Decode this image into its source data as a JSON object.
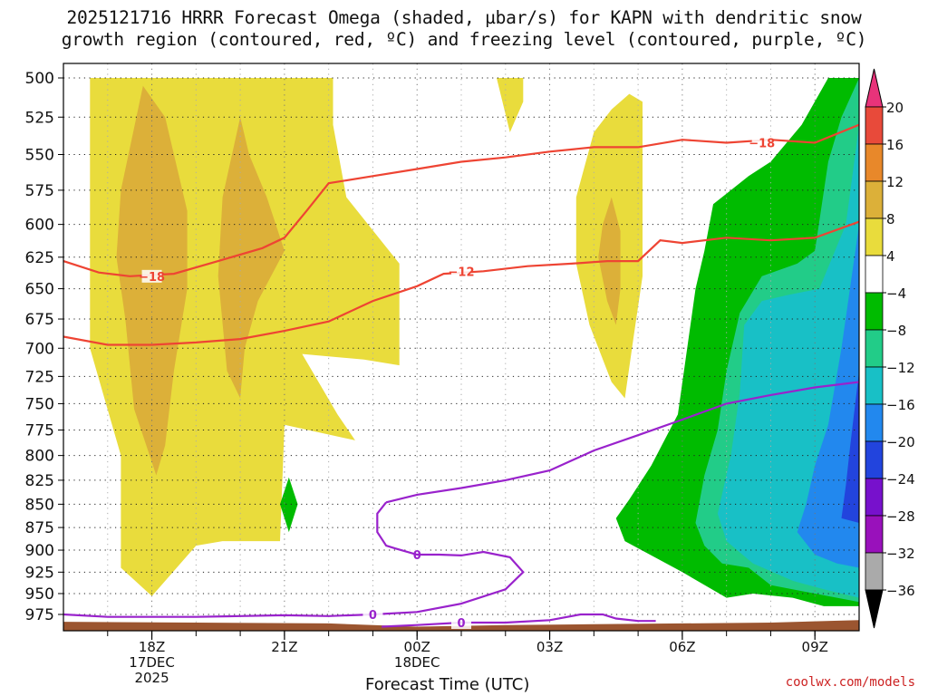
{
  "title": {
    "line1": "2025121716 HRRR Forecast Omega (shaded, µbar/s) for KAPN with dendritic snow",
    "line2": "growth region (contoured, red, ºC) and freezing level (contoured, purple, ºC)"
  },
  "credit": "coolwx.com/models",
  "chart_data": {
    "type": "heatmap",
    "xlabel": "Forecast Time (UTC)",
    "x_ticks": [
      {
        "hour": 2,
        "lines": [
          "18Z",
          "17DEC",
          "2025"
        ]
      },
      {
        "hour": 5,
        "lines": [
          "21Z"
        ]
      },
      {
        "hour": 8,
        "lines": [
          "00Z",
          "18DEC"
        ]
      },
      {
        "hour": 11,
        "lines": [
          "03Z"
        ]
      },
      {
        "hour": 14,
        "lines": [
          "06Z"
        ]
      },
      {
        "hour": 17,
        "lines": [
          "09Z"
        ]
      }
    ],
    "xlim": [
      0.0,
      18.0
    ],
    "y_ticks": [
      500,
      525,
      550,
      575,
      600,
      625,
      650,
      675,
      700,
      725,
      750,
      775,
      800,
      825,
      850,
      875,
      900,
      925,
      950,
      975
    ],
    "ylim": [
      995,
      490
    ],
    "grid": "dotted",
    "colorbar": {
      "labels": [
        "20",
        "16",
        "12",
        "8",
        "4",
        "−4",
        "−8",
        "−12",
        "−16",
        "−20",
        "−24",
        "−28",
        "−32",
        "−36"
      ],
      "colors": [
        "#e8337a",
        "#e84a3a",
        "#e8882a",
        "#dcb039",
        "#e9dc3c",
        "#ffffff",
        "#00bb00",
        "#22cc88",
        "#18c0c6",
        "#2288ee",
        "#2244dd",
        "#7711cc",
        "#9911bb",
        "#aaaaaa",
        "#000000"
      ]
    },
    "omega_regions": [
      {
        "level": "4",
        "color": "#e9dc3c",
        "polygon": [
          [
            0.6,
            500
          ],
          [
            6.1,
            500
          ],
          [
            6.1,
            530
          ],
          [
            6.4,
            580
          ],
          [
            7.6,
            630
          ],
          [
            7.6,
            715
          ],
          [
            6.8,
            710
          ],
          [
            5.4,
            705
          ],
          [
            6.2,
            760
          ],
          [
            6.6,
            785
          ],
          [
            5.0,
            770
          ],
          [
            4.9,
            890
          ],
          [
            3.6,
            890
          ],
          [
            3.0,
            895
          ],
          [
            2.0,
            953
          ],
          [
            1.3,
            920
          ],
          [
            1.3,
            800
          ],
          [
            0.6,
            700
          ]
        ]
      },
      {
        "level": "4",
        "color": "#e9dc3c",
        "polygon": [
          [
            9.8,
            500
          ],
          [
            10.4,
            500
          ],
          [
            10.4,
            515
          ],
          [
            10.1,
            535
          ]
        ]
      },
      {
        "level": "4",
        "color": "#e9dc3c",
        "polygon": [
          [
            12.0,
            535
          ],
          [
            12.4,
            520
          ],
          [
            12.8,
            510
          ],
          [
            13.1,
            515
          ],
          [
            13.1,
            640
          ],
          [
            12.9,
            690
          ],
          [
            12.7,
            745
          ],
          [
            12.4,
            730
          ],
          [
            11.9,
            680
          ],
          [
            11.6,
            630
          ],
          [
            11.6,
            580
          ]
        ]
      },
      {
        "level": "-4",
        "color": "#00bb00",
        "polygon": [
          [
            17.3,
            500
          ],
          [
            18.0,
            500
          ],
          [
            18.0,
            965
          ],
          [
            17.2,
            965
          ],
          [
            16.5,
            955
          ],
          [
            15.6,
            950
          ],
          [
            15.0,
            955
          ],
          [
            14.0,
            925
          ],
          [
            12.7,
            890
          ],
          [
            12.5,
            865
          ],
          [
            12.8,
            845
          ],
          [
            13.3,
            810
          ],
          [
            13.9,
            760
          ],
          [
            14.3,
            650
          ],
          [
            14.5,
            620
          ],
          [
            14.7,
            585
          ],
          [
            15.1,
            575
          ],
          [
            15.5,
            565
          ],
          [
            16.0,
            555
          ],
          [
            16.7,
            530
          ]
        ]
      },
      {
        "level": "-4",
        "color": "#00bb00",
        "polygon": [
          [
            5.1,
            822
          ],
          [
            5.3,
            850
          ],
          [
            5.1,
            880
          ],
          [
            4.9,
            850
          ]
        ]
      },
      {
        "level": "8",
        "color": "#dcb039",
        "polygon": [
          [
            1.8,
            505
          ],
          [
            2.3,
            525
          ],
          [
            2.8,
            590
          ],
          [
            2.8,
            650
          ],
          [
            2.5,
            720
          ],
          [
            2.3,
            790
          ],
          [
            2.1,
            820
          ],
          [
            1.6,
            755
          ],
          [
            1.4,
            675
          ],
          [
            1.2,
            625
          ],
          [
            1.3,
            575
          ]
        ]
      },
      {
        "level": "8",
        "color": "#dcb039",
        "polygon": [
          [
            4.0,
            525
          ],
          [
            4.2,
            550
          ],
          [
            4.6,
            580
          ],
          [
            5.0,
            620
          ],
          [
            4.4,
            660
          ],
          [
            4.1,
            700
          ],
          [
            4.0,
            745
          ],
          [
            3.7,
            720
          ],
          [
            3.5,
            640
          ],
          [
            3.6,
            580
          ]
        ]
      },
      {
        "level": "8",
        "color": "#dcb039",
        "polygon": [
          [
            12.4,
            580
          ],
          [
            12.6,
            605
          ],
          [
            12.6,
            650
          ],
          [
            12.5,
            680
          ],
          [
            12.3,
            660
          ],
          [
            12.1,
            625
          ],
          [
            12.2,
            600
          ]
        ]
      },
      {
        "level": "-8",
        "color": "#22cc88",
        "polygon": [
          [
            18.0,
            500
          ],
          [
            18.0,
            960
          ],
          [
            17.0,
            950
          ],
          [
            16.0,
            940
          ],
          [
            15.5,
            920
          ],
          [
            14.9,
            915
          ],
          [
            14.5,
            895
          ],
          [
            14.3,
            870
          ],
          [
            14.5,
            820
          ],
          [
            14.8,
            775
          ],
          [
            15.0,
            720
          ],
          [
            15.3,
            670
          ],
          [
            15.8,
            640
          ],
          [
            16.6,
            630
          ],
          [
            17.0,
            620
          ],
          [
            17.3,
            555
          ],
          [
            17.6,
            525
          ]
        ]
      },
      {
        "level": "-12",
        "color": "#18c0c6",
        "polygon": [
          [
            18.0,
            530
          ],
          [
            18.0,
            955
          ],
          [
            17.2,
            945
          ],
          [
            16.5,
            935
          ],
          [
            15.6,
            915
          ],
          [
            15.0,
            890
          ],
          [
            14.8,
            860
          ],
          [
            15.1,
            800
          ],
          [
            15.3,
            740
          ],
          [
            15.4,
            680
          ],
          [
            15.8,
            660
          ],
          [
            16.4,
            655
          ],
          [
            17.1,
            650
          ],
          [
            17.7,
            600
          ]
        ]
      },
      {
        "level": "-16",
        "color": "#2288ee",
        "polygon": [
          [
            18.0,
            600
          ],
          [
            18.0,
            920
          ],
          [
            17.5,
            915
          ],
          [
            17.0,
            905
          ],
          [
            16.6,
            880
          ],
          [
            16.8,
            850
          ],
          [
            17.0,
            810
          ],
          [
            17.3,
            770
          ],
          [
            17.6,
            700
          ]
        ]
      },
      {
        "level": "-20",
        "color": "#2244dd",
        "polygon": [
          [
            18.0,
            720
          ],
          [
            18.0,
            870
          ],
          [
            17.6,
            865
          ],
          [
            17.7,
            830
          ],
          [
            17.8,
            790
          ]
        ]
      }
    ],
    "red_contours": [
      {
        "label": "-18",
        "label_at": [
          2.0,
          640
        ],
        "points": [
          [
            0.0,
            628
          ],
          [
            0.8,
            637
          ],
          [
            1.5,
            640
          ],
          [
            2.5,
            638
          ],
          [
            3.5,
            628
          ],
          [
            4.5,
            618
          ],
          [
            5.0,
            610
          ],
          [
            5.5,
            590
          ],
          [
            6.0,
            570
          ],
          [
            7.0,
            565
          ],
          [
            8.0,
            560
          ],
          [
            9.0,
            555
          ],
          [
            10.0,
            552
          ],
          [
            11.0,
            548
          ],
          [
            12.0,
            545
          ],
          [
            13.0,
            545
          ],
          [
            14.0,
            540
          ],
          [
            15.0,
            542
          ],
          [
            16.0,
            540
          ],
          [
            17.0,
            542
          ],
          [
            18.0,
            530
          ]
        ]
      },
      {
        "label": "-18",
        "label_at": [
          15.8,
          542
        ],
        "points": []
      },
      {
        "label": "-12",
        "label_at": [
          9.0,
          636
        ],
        "points": [
          [
            0.0,
            690
          ],
          [
            1.0,
            697
          ],
          [
            2.0,
            697
          ],
          [
            3.0,
            695
          ],
          [
            4.0,
            692
          ],
          [
            5.0,
            685
          ],
          [
            6.0,
            677
          ],
          [
            7.0,
            660
          ],
          [
            8.0,
            648
          ],
          [
            8.6,
            638
          ],
          [
            9.5,
            636
          ],
          [
            10.5,
            632
          ],
          [
            11.5,
            630
          ],
          [
            12.3,
            628
          ],
          [
            13.0,
            628
          ],
          [
            13.5,
            612
          ],
          [
            14.0,
            614
          ],
          [
            15.0,
            610
          ],
          [
            16.0,
            612
          ],
          [
            17.0,
            610
          ],
          [
            18.0,
            598
          ]
        ]
      }
    ],
    "purple_contours": [
      {
        "label": "0",
        "label_at": [
          8.0,
          905
        ],
        "points": [
          [
            7.3,
            848
          ],
          [
            8.0,
            840
          ],
          [
            9.0,
            833
          ],
          [
            10.0,
            825
          ],
          [
            11.0,
            815
          ],
          [
            12.0,
            795
          ],
          [
            13.0,
            780
          ],
          [
            14.0,
            765
          ],
          [
            15.0,
            750
          ],
          [
            16.0,
            742
          ],
          [
            17.0,
            735
          ],
          [
            18.0,
            730
          ]
        ]
      },
      {
        "label": "0",
        "label_at": [
          7.0,
          975
        ],
        "points": [
          [
            0.0,
            975
          ],
          [
            1.0,
            978
          ],
          [
            2.0,
            978
          ],
          [
            3.0,
            978
          ],
          [
            4.0,
            977
          ],
          [
            5.0,
            976
          ],
          [
            6.0,
            977
          ],
          [
            7.0,
            975
          ],
          [
            8.0,
            972
          ],
          [
            9.0,
            962
          ],
          [
            10.0,
            945
          ],
          [
            10.4,
            925
          ],
          [
            10.1,
            908
          ],
          [
            9.5,
            902
          ],
          [
            9.0,
            906
          ],
          [
            8.5,
            905
          ],
          [
            8.0,
            905
          ],
          [
            7.5,
            898
          ],
          [
            7.3,
            895
          ],
          [
            7.1,
            880
          ],
          [
            7.1,
            860
          ],
          [
            7.3,
            848
          ]
        ]
      },
      {
        "label": "0",
        "label_at": [
          9.0,
          985
        ],
        "points": [
          [
            7.2,
            990
          ],
          [
            8.0,
            988
          ],
          [
            9.0,
            985
          ],
          [
            10.0,
            985
          ],
          [
            11.0,
            982
          ],
          [
            11.7,
            975
          ],
          [
            12.2,
            975
          ],
          [
            12.5,
            980
          ],
          [
            13.0,
            983
          ],
          [
            13.4,
            983
          ]
        ]
      }
    ],
    "terrain_color": "#9b5530"
  }
}
